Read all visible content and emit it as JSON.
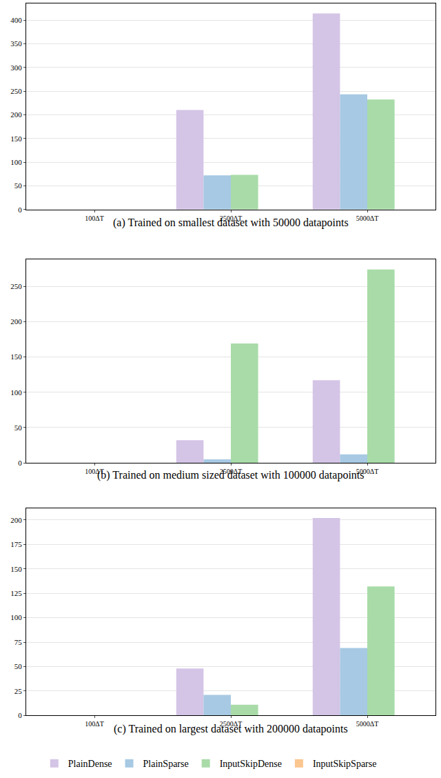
{
  "chart_data": [
    {
      "type": "bar",
      "title": "(a) Trained on smallest dataset with 50000 datapoints",
      "categories": [
        "100ΔT",
        "2500ΔT",
        "5000ΔT"
      ],
      "ylim": [
        0,
        435
      ],
      "yticks": [
        0,
        50,
        100,
        150,
        200,
        250,
        300,
        350,
        400
      ],
      "grid": true,
      "legend": "bottom",
      "series": [
        {
          "name": "PlainDense",
          "color": "#d4c4e6",
          "values": [
            0,
            210,
            414
          ]
        },
        {
          "name": "PlainSparse",
          "color": "#a7c9e3",
          "values": [
            0,
            72,
            243
          ]
        },
        {
          "name": "InputSkipDense",
          "color": "#a8dba8",
          "values": [
            0,
            73,
            232
          ]
        },
        {
          "name": "InputSkipSparse",
          "color": "#fbc68f",
          "values": [
            0,
            0,
            0
          ]
        }
      ]
    },
    {
      "type": "bar",
      "title": "(b) Trained on medium sized dataset with 100000 datapoints",
      "categories": [
        "100ΔT",
        "2500ΔT",
        "5000ΔT"
      ],
      "ylim": [
        0,
        288
      ],
      "yticks": [
        0,
        50,
        100,
        150,
        200,
        250
      ],
      "grid": true,
      "legend": "bottom",
      "series": [
        {
          "name": "PlainDense",
          "color": "#d4c4e6",
          "values": [
            0,
            32,
            117
          ]
        },
        {
          "name": "PlainSparse",
          "color": "#a7c9e3",
          "values": [
            0,
            5,
            12
          ]
        },
        {
          "name": "InputSkipDense",
          "color": "#a8dba8",
          "values": [
            0,
            169,
            274
          ]
        },
        {
          "name": "InputSkipSparse",
          "color": "#fbc68f",
          "values": [
            0,
            0,
            0
          ]
        }
      ]
    },
    {
      "type": "bar",
      "title": "(c) Trained on largest dataset with 200000 datapoints",
      "categories": [
        "100ΔT",
        "2500ΔT",
        "5000ΔT"
      ],
      "ylim": [
        0,
        212
      ],
      "yticks": [
        0,
        25,
        50,
        75,
        100,
        125,
        150,
        175,
        200
      ],
      "grid": true,
      "legend": "bottom",
      "series": [
        {
          "name": "PlainDense",
          "color": "#d4c4e6",
          "values": [
            0,
            48,
            202
          ]
        },
        {
          "name": "PlainSparse",
          "color": "#a7c9e3",
          "values": [
            0,
            21,
            69
          ]
        },
        {
          "name": "InputSkipDense",
          "color": "#a8dba8",
          "values": [
            0,
            11,
            132
          ]
        },
        {
          "name": "InputSkipSparse",
          "color": "#fbc68f",
          "values": [
            0,
            0,
            0
          ]
        }
      ]
    }
  ]
}
